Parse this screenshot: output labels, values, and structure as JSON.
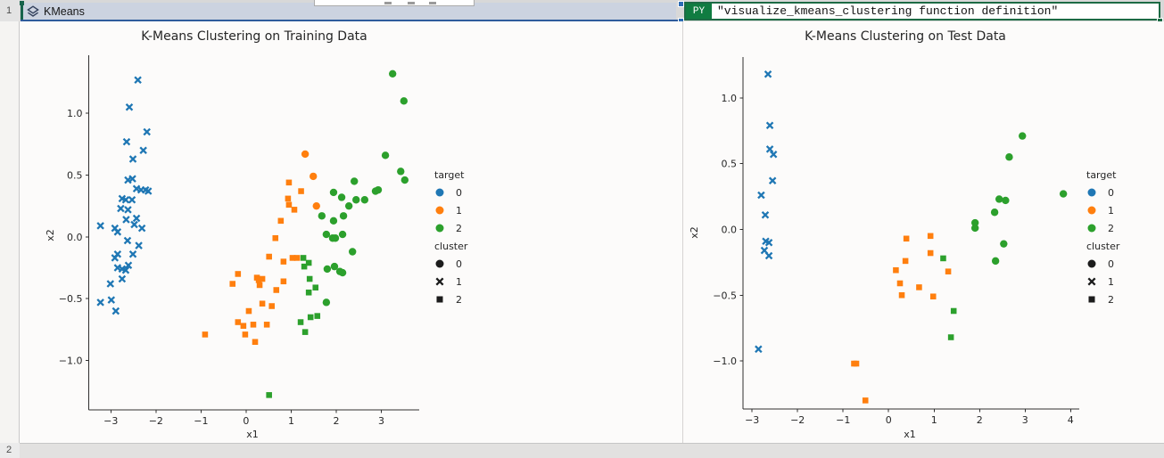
{
  "app": {
    "rows": [
      "1",
      "2"
    ],
    "image_cell": {
      "label": "KMeans",
      "icon": "layers-icon"
    },
    "formula_cell": {
      "badge": "PY",
      "formula": "\"visualize_kmeans_clustering function definition\""
    },
    "colors": {
      "excel_green": "#107c41",
      "selection_green": "#1d6b45",
      "picture_selection_blue": "#2e5b9c",
      "header_fill": "#ccd3e0",
      "target_0": "#1f77b4",
      "target_1": "#ff7f0e",
      "target_2": "#2ca02c"
    }
  },
  "chart_data": [
    {
      "type": "scatter",
      "title": "K-Means Clustering on Training Data",
      "xlabel": "x1",
      "ylabel": "x2",
      "xlim": [
        -3.49,
        3.84
      ],
      "ylim": [
        -1.4,
        1.47
      ],
      "xtick_values": [
        -3,
        -2,
        -1,
        0,
        1,
        2,
        3
      ],
      "xtick_labels": [
        "−3",
        "−2",
        "−1",
        "0",
        "1",
        "2",
        "3"
      ],
      "ytick_values": [
        1.0,
        0.5,
        0.0,
        -0.5,
        -1.0
      ],
      "ytick_labels": [
        "1.0",
        "0.5",
        "0.0",
        "−0.5",
        "−1.0"
      ],
      "grid": false,
      "legend_position": "center-right",
      "legend": {
        "sections": [
          {
            "title": "target",
            "items": [
              {
                "label": "0",
                "color": "#1f77b4",
                "marker": "o"
              },
              {
                "label": "1",
                "color": "#ff7f0e",
                "marker": "o"
              },
              {
                "label": "2",
                "color": "#2ca02c",
                "marker": "o"
              }
            ]
          },
          {
            "title": "cluster",
            "items": [
              {
                "label": "0",
                "color": "#1c1c1c",
                "marker": "o"
              },
              {
                "label": "1",
                "color": "#1c1c1c",
                "marker": "x"
              },
              {
                "label": "2",
                "color": "#1c1c1c",
                "marker": "s"
              }
            ]
          }
        ]
      },
      "series": [
        {
          "name": "0",
          "color": "#1f77b4",
          "points": [
            [
              -2.4,
              1.27,
              "x"
            ],
            [
              -2.59,
              1.05,
              "x"
            ],
            [
              -2.2,
              0.85,
              "x"
            ],
            [
              -2.65,
              0.77,
              "x"
            ],
            [
              -2.28,
              0.7,
              "x"
            ],
            [
              -2.51,
              0.63,
              "x"
            ],
            [
              -2.62,
              0.46,
              "x"
            ],
            [
              -2.52,
              0.47,
              "x"
            ],
            [
              -2.43,
              0.39,
              "x"
            ],
            [
              -2.33,
              0.38,
              "x"
            ],
            [
              -2.23,
              0.38,
              "x"
            ],
            [
              -2.17,
              0.37,
              "x"
            ],
            [
              -2.75,
              0.31,
              "x"
            ],
            [
              -2.67,
              0.3,
              "x"
            ],
            [
              -2.53,
              0.3,
              "x"
            ],
            [
              -2.78,
              0.23,
              "x"
            ],
            [
              -2.62,
              0.22,
              "x"
            ],
            [
              -2.66,
              0.14,
              "x"
            ],
            [
              -2.43,
              0.15,
              "x"
            ],
            [
              -2.48,
              0.1,
              "x"
            ],
            [
              -2.31,
              0.07,
              "x"
            ],
            [
              -3.23,
              0.09,
              "x"
            ],
            [
              -2.91,
              0.07,
              "x"
            ],
            [
              -2.85,
              0.04,
              "x"
            ],
            [
              -2.63,
              -0.03,
              "x"
            ],
            [
              -2.38,
              -0.07,
              "x"
            ],
            [
              -2.85,
              -0.14,
              "x"
            ],
            [
              -2.91,
              -0.17,
              "x"
            ],
            [
              -2.51,
              -0.14,
              "x"
            ],
            [
              -2.85,
              -0.25,
              "x"
            ],
            [
              -2.75,
              -0.26,
              "x"
            ],
            [
              -2.67,
              -0.27,
              "x"
            ],
            [
              -2.61,
              -0.23,
              "x"
            ],
            [
              -3.01,
              -0.38,
              "x"
            ],
            [
              -2.75,
              -0.34,
              "x"
            ],
            [
              -3.23,
              -0.53,
              "x"
            ],
            [
              -2.99,
              -0.51,
              "x"
            ],
            [
              -2.89,
              -0.6,
              "x"
            ]
          ]
        },
        {
          "name": "1",
          "color": "#ff7f0e",
          "points": [
            [
              1.31,
              0.67,
              "o"
            ],
            [
              1.49,
              0.49,
              "o"
            ],
            [
              1.56,
              0.25,
              "o"
            ],
            [
              0.95,
              0.44,
              "s"
            ],
            [
              1.22,
              0.37,
              "s"
            ],
            [
              0.93,
              0.31,
              "s"
            ],
            [
              0.95,
              0.26,
              "s"
            ],
            [
              1.07,
              0.22,
              "s"
            ],
            [
              0.77,
              0.13,
              "s"
            ],
            [
              0.65,
              -0.01,
              "s"
            ],
            [
              0.51,
              -0.16,
              "s"
            ],
            [
              0.83,
              -0.2,
              "s"
            ],
            [
              1.03,
              -0.17,
              "s"
            ],
            [
              1.13,
              -0.17,
              "s"
            ],
            [
              -0.18,
              -0.3,
              "s"
            ],
            [
              -0.3,
              -0.38,
              "s"
            ],
            [
              0.24,
              -0.33,
              "s"
            ],
            [
              0.28,
              -0.35,
              "s"
            ],
            [
              0.36,
              -0.34,
              "s"
            ],
            [
              0.3,
              -0.39,
              "s"
            ],
            [
              0.67,
              -0.43,
              "s"
            ],
            [
              0.83,
              -0.36,
              "s"
            ],
            [
              0.36,
              -0.54,
              "s"
            ],
            [
              0.57,
              -0.56,
              "s"
            ],
            [
              0.06,
              -0.6,
              "s"
            ],
            [
              -0.18,
              -0.69,
              "s"
            ],
            [
              -0.06,
              -0.72,
              "s"
            ],
            [
              0.16,
              -0.71,
              "s"
            ],
            [
              0.46,
              -0.71,
              "s"
            ],
            [
              -0.02,
              -0.79,
              "s"
            ],
            [
              0.2,
              -0.85,
              "s"
            ],
            [
              -0.91,
              -0.79,
              "s"
            ]
          ]
        },
        {
          "name": "2",
          "color": "#2ca02c",
          "points": [
            [
              3.25,
              1.32,
              "o"
            ],
            [
              3.5,
              1.1,
              "o"
            ],
            [
              3.09,
              0.66,
              "o"
            ],
            [
              3.43,
              0.53,
              "o"
            ],
            [
              3.52,
              0.46,
              "o"
            ],
            [
              2.4,
              0.45,
              "o"
            ],
            [
              1.94,
              0.36,
              "o"
            ],
            [
              2.12,
              0.32,
              "o"
            ],
            [
              2.28,
              0.25,
              "o"
            ],
            [
              2.44,
              0.3,
              "o"
            ],
            [
              2.63,
              0.3,
              "o"
            ],
            [
              2.87,
              0.37,
              "o"
            ],
            [
              2.93,
              0.38,
              "o"
            ],
            [
              1.68,
              0.17,
              "o"
            ],
            [
              1.94,
              0.13,
              "o"
            ],
            [
              2.16,
              0.17,
              "o"
            ],
            [
              1.78,
              0.02,
              "o"
            ],
            [
              1.92,
              -0.01,
              "o"
            ],
            [
              1.98,
              -0.01,
              "o"
            ],
            [
              2.14,
              0.02,
              "o"
            ],
            [
              2.36,
              -0.12,
              "o"
            ],
            [
              1.8,
              -0.26,
              "o"
            ],
            [
              1.96,
              -0.24,
              "o"
            ],
            [
              2.08,
              -0.28,
              "o"
            ],
            [
              2.14,
              -0.29,
              "o"
            ],
            [
              1.78,
              -0.53,
              "o"
            ],
            [
              1.27,
              -0.17,
              "s"
            ],
            [
              1.39,
              -0.21,
              "s"
            ],
            [
              1.29,
              -0.24,
              "s"
            ],
            [
              1.41,
              -0.34,
              "s"
            ],
            [
              1.54,
              -0.41,
              "s"
            ],
            [
              1.39,
              -0.45,
              "s"
            ],
            [
              1.43,
              -0.65,
              "s"
            ],
            [
              1.58,
              -0.64,
              "s"
            ],
            [
              1.21,
              -0.69,
              "s"
            ],
            [
              1.31,
              -0.77,
              "s"
            ],
            [
              0.51,
              -1.28,
              "s"
            ]
          ]
        }
      ]
    },
    {
      "type": "scatter",
      "title": "K-Means Clustering on Test Data",
      "xlabel": "x1",
      "ylabel": "x2",
      "xlim": [
        -3.2,
        4.19
      ],
      "ylim": [
        -1.365,
        1.31
      ],
      "xtick_values": [
        -3,
        -2,
        -1,
        0,
        1,
        2,
        3,
        4
      ],
      "xtick_labels": [
        "−3",
        "−2",
        "−1",
        "0",
        "1",
        "2",
        "3",
        "4"
      ],
      "ytick_values": [
        1.0,
        0.5,
        0.0,
        -0.5,
        -1.0
      ],
      "ytick_labels": [
        "1.0",
        "0.5",
        "0.0",
        "−0.5",
        "−1.0"
      ],
      "grid": false,
      "legend_position": "center-right",
      "legend": {
        "sections": [
          {
            "title": "target",
            "items": [
              {
                "label": "0",
                "color": "#1f77b4",
                "marker": "o"
              },
              {
                "label": "1",
                "color": "#ff7f0e",
                "marker": "o"
              },
              {
                "label": "2",
                "color": "#2ca02c",
                "marker": "o"
              }
            ]
          },
          {
            "title": "cluster",
            "items": [
              {
                "label": "0",
                "color": "#1c1c1c",
                "marker": "o"
              },
              {
                "label": "1",
                "color": "#1c1c1c",
                "marker": "x"
              },
              {
                "label": "2",
                "color": "#1c1c1c",
                "marker": "s"
              }
            ]
          }
        ]
      },
      "series": [
        {
          "name": "0",
          "color": "#1f77b4",
          "points": [
            [
              -2.65,
              1.18,
              "x"
            ],
            [
              -2.61,
              0.79,
              "x"
            ],
            [
              -2.61,
              0.61,
              "x"
            ],
            [
              -2.53,
              0.57,
              "x"
            ],
            [
              -2.55,
              0.37,
              "x"
            ],
            [
              -2.8,
              0.26,
              "x"
            ],
            [
              -2.71,
              0.11,
              "x"
            ],
            [
              -2.7,
              -0.09,
              "x"
            ],
            [
              -2.63,
              -0.1,
              "x"
            ],
            [
              -2.73,
              -0.16,
              "x"
            ],
            [
              -2.63,
              -0.2,
              "x"
            ],
            [
              -2.86,
              -0.91,
              "x"
            ]
          ]
        },
        {
          "name": "1",
          "color": "#ff7f0e",
          "points": [
            [
              0.39,
              -0.07,
              "s"
            ],
            [
              0.92,
              -0.05,
              "s"
            ],
            [
              0.37,
              -0.24,
              "s"
            ],
            [
              0.92,
              -0.18,
              "s"
            ],
            [
              0.16,
              -0.31,
              "s"
            ],
            [
              1.31,
              -0.32,
              "s"
            ],
            [
              0.25,
              -0.41,
              "s"
            ],
            [
              0.67,
              -0.44,
              "s"
            ],
            [
              0.29,
              -0.5,
              "s"
            ],
            [
              0.98,
              -0.51,
              "s"
            ],
            [
              -0.76,
              -1.02,
              "s"
            ],
            [
              -0.71,
              -1.02,
              "s"
            ],
            [
              -0.51,
              -1.3,
              "s"
            ]
          ]
        },
        {
          "name": "2",
          "color": "#2ca02c",
          "points": [
            [
              2.94,
              0.71,
              "o"
            ],
            [
              2.65,
              0.55,
              "o"
            ],
            [
              3.84,
              0.27,
              "o"
            ],
            [
              2.43,
              0.23,
              "o"
            ],
            [
              2.57,
              0.22,
              "o"
            ],
            [
              2.33,
              0.13,
              "o"
            ],
            [
              1.9,
              0.05,
              "o"
            ],
            [
              1.9,
              0.01,
              "o"
            ],
            [
              2.53,
              -0.11,
              "o"
            ],
            [
              2.35,
              -0.24,
              "o"
            ],
            [
              1.2,
              -0.22,
              "s"
            ],
            [
              1.43,
              -0.62,
              "s"
            ],
            [
              1.37,
              -0.82,
              "s"
            ]
          ]
        }
      ]
    }
  ]
}
